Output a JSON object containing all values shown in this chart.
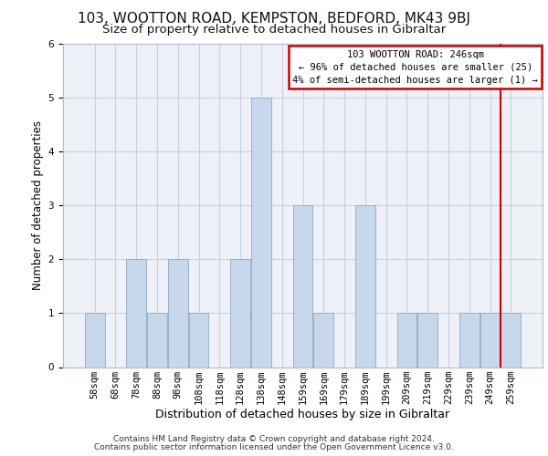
{
  "title1": "103, WOOTTON ROAD, KEMPSTON, BEDFORD, MK43 9BJ",
  "title2": "Size of property relative to detached houses in Gibraltar",
  "xlabel": "Distribution of detached houses by size in Gibraltar",
  "ylabel": "Number of detached properties",
  "footer1": "Contains HM Land Registry data © Crown copyright and database right 2024.",
  "footer2": "Contains public sector information licensed under the Open Government Licence v3.0.",
  "categories": [
    "58sqm",
    "68sqm",
    "78sqm",
    "88sqm",
    "98sqm",
    "108sqm",
    "118sqm",
    "128sqm",
    "138sqm",
    "148sqm",
    "159sqm",
    "169sqm",
    "179sqm",
    "189sqm",
    "199sqm",
    "209sqm",
    "219sqm",
    "229sqm",
    "239sqm",
    "249sqm",
    "259sqm"
  ],
  "values": [
    1,
    0,
    2,
    1,
    2,
    1,
    0,
    2,
    5,
    0,
    3,
    1,
    0,
    3,
    0,
    1,
    1,
    0,
    1,
    1,
    1
  ],
  "bar_color": "#c8d8ec",
  "bar_edge_color": "#90a8c0",
  "bar_linewidth": 0.6,
  "vline_x": 19.5,
  "vline_color": "#cc0000",
  "annotation_title": "103 WOOTTON ROAD: 246sqm",
  "annotation_line1": "← 96% of detached houses are smaller (25)",
  "annotation_line2": "4% of semi-detached houses are larger (1) →",
  "annotation_box_edgecolor": "#cc0000",
  "annotation_bg": "#ffffff",
  "ylim": [
    0,
    6
  ],
  "yticks": [
    0,
    1,
    2,
    3,
    4,
    5,
    6
  ],
  "grid_color": "#c8d0e0",
  "background_color": "#eef2f8",
  "title1_fontsize": 11,
  "title2_fontsize": 9.5,
  "xlabel_fontsize": 9,
  "ylabel_fontsize": 8.5,
  "tick_fontsize": 7.5,
  "footer_fontsize": 6.5,
  "ann_fontsize": 7.5
}
